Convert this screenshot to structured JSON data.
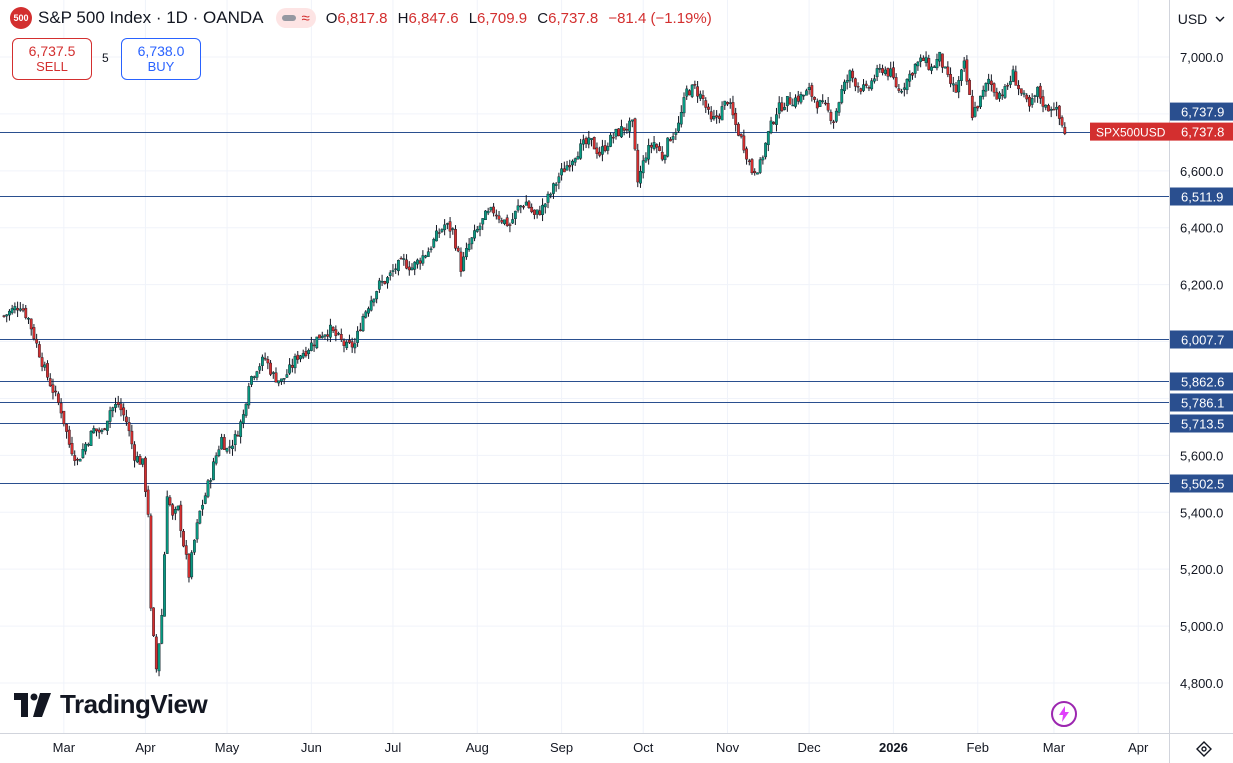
{
  "header": {
    "symbol_badge": "500",
    "title": "S&P 500 Index · 1D · OANDA",
    "ohlc": {
      "o_label": "O",
      "o": "6,817.8",
      "h_label": "H",
      "h": "6,847.6",
      "l_label": "L",
      "l": "6,709.9",
      "c_label": "C",
      "c": "6,737.8",
      "change": "−81.4 (−1.19%)"
    }
  },
  "trade": {
    "sell_price": "6,737.5",
    "sell_label": "SELL",
    "spread": "5",
    "buy_price": "6,738.0",
    "buy_label": "BUY"
  },
  "currency": "USD",
  "brand": "TradingView",
  "colors": {
    "up": "#089981",
    "down": "#d32f2f",
    "line": "#2a4f8f",
    "grid": "#f0f3fa"
  },
  "chart_data": {
    "type": "candlestick",
    "symbol": "SPX500USD",
    "ylim": [
      4720,
      7120
    ],
    "y_ticks": [
      4800,
      5000,
      5200,
      5400,
      5600,
      5800,
      6000,
      6200,
      6400,
      6600,
      6800,
      7000
    ],
    "y_tick_labels": [
      "4,800.0",
      "5,000.0",
      "5,200.0",
      "5,400.0",
      "5,600.0",
      "5,800.0",
      "6,000.0",
      "6,200.0",
      "6,400.0",
      "6,600.0",
      "6,800.0",
      "7,000.0"
    ],
    "x_labels": [
      {
        "label": "Mar",
        "day": 22
      },
      {
        "label": "Apr",
        "day": 52
      },
      {
        "label": "May",
        "day": 82
      },
      {
        "label": "Jun",
        "day": 113
      },
      {
        "label": "Jul",
        "day": 143
      },
      {
        "label": "Aug",
        "day": 174
      },
      {
        "label": "Sep",
        "day": 205
      },
      {
        "label": "Oct",
        "day": 235
      },
      {
        "label": "Nov",
        "day": 266
      },
      {
        "label": "Dec",
        "day": 296
      },
      {
        "label": "2026",
        "day": 327,
        "bold": true
      },
      {
        "label": "Feb",
        "day": 358
      },
      {
        "label": "Mar",
        "day": 386
      },
      {
        "label": "Apr",
        "day": 417
      }
    ],
    "horizontal_lines": [
      {
        "value": 6737.8,
        "label": "6,737.8"
      },
      {
        "value": 6511.9,
        "label": "6,511.9"
      },
      {
        "value": 6007.7,
        "label": "6,007.7"
      },
      {
        "value": 5862.6,
        "label": "5,862.6"
      },
      {
        "value": 5786.1,
        "label": "5,786.1"
      },
      {
        "value": 5713.5,
        "label": "5,713.5"
      },
      {
        "value": 5502.5,
        "label": "5,502.5"
      }
    ],
    "current_price": {
      "value": 6737.8,
      "label": "6,737.8",
      "symbol_label": "SPX500USD"
    },
    "other_price": {
      "value": 6737.9,
      "label": "6,737.9"
    },
    "closes": [
      {
        "day": 0,
        "close": 6090
      },
      {
        "day": 3,
        "close": 6110
      },
      {
        "day": 6,
        "close": 6130
      },
      {
        "day": 9,
        "close": 6080
      },
      {
        "day": 12,
        "close": 5990
      },
      {
        "day": 15,
        "close": 5900
      },
      {
        "day": 18,
        "close": 5830
      },
      {
        "day": 21,
        "close": 5760
      },
      {
        "day": 24,
        "close": 5640
      },
      {
        "day": 27,
        "close": 5580
      },
      {
        "day": 30,
        "close": 5640
      },
      {
        "day": 33,
        "close": 5690
      },
      {
        "day": 36,
        "close": 5680
      },
      {
        "day": 39,
        "close": 5760
      },
      {
        "day": 42,
        "close": 5780
      },
      {
        "day": 45,
        "close": 5720
      },
      {
        "day": 48,
        "close": 5600
      },
      {
        "day": 51,
        "close": 5570
      },
      {
        "day": 53,
        "close": 5400
      },
      {
        "day": 54,
        "close": 5050
      },
      {
        "day": 56,
        "close": 4850
      },
      {
        "day": 58,
        "close": 5040
      },
      {
        "day": 60,
        "close": 5470
      },
      {
        "day": 62,
        "close": 5380
      },
      {
        "day": 64,
        "close": 5410
      },
      {
        "day": 66,
        "close": 5290
      },
      {
        "day": 68,
        "close": 5180
      },
      {
        "day": 70,
        "close": 5300
      },
      {
        "day": 72,
        "close": 5400
      },
      {
        "day": 74,
        "close": 5460
      },
      {
        "day": 76,
        "close": 5530
      },
      {
        "day": 78,
        "close": 5600
      },
      {
        "day": 80,
        "close": 5660
      },
      {
        "day": 82,
        "close": 5620
      },
      {
        "day": 85,
        "close": 5660
      },
      {
        "day": 88,
        "close": 5740
      },
      {
        "day": 90,
        "close": 5860
      },
      {
        "day": 93,
        "close": 5910
      },
      {
        "day": 96,
        "close": 5940
      },
      {
        "day": 99,
        "close": 5880
      },
      {
        "day": 102,
        "close": 5860
      },
      {
        "day": 105,
        "close": 5900
      },
      {
        "day": 108,
        "close": 5950
      },
      {
        "day": 111,
        "close": 5970
      },
      {
        "day": 114,
        "close": 6000
      },
      {
        "day": 117,
        "close": 6030
      },
      {
        "day": 120,
        "close": 6040
      },
      {
        "day": 123,
        "close": 6010
      },
      {
        "day": 126,
        "close": 5980
      },
      {
        "day": 129,
        "close": 5990
      },
      {
        "day": 132,
        "close": 6090
      },
      {
        "day": 135,
        "close": 6150
      },
      {
        "day": 138,
        "close": 6200
      },
      {
        "day": 141,
        "close": 6220
      },
      {
        "day": 144,
        "close": 6260
      },
      {
        "day": 147,
        "close": 6280
      },
      {
        "day": 150,
        "close": 6260
      },
      {
        "day": 153,
        "close": 6290
      },
      {
        "day": 156,
        "close": 6320
      },
      {
        "day": 159,
        "close": 6370
      },
      {
        "day": 162,
        "close": 6410
      },
      {
        "day": 165,
        "close": 6390
      },
      {
        "day": 168,
        "close": 6260
      },
      {
        "day": 171,
        "close": 6340
      },
      {
        "day": 174,
        "close": 6390
      },
      {
        "day": 177,
        "close": 6440
      },
      {
        "day": 180,
        "close": 6460
      },
      {
        "day": 183,
        "close": 6430
      },
      {
        "day": 186,
        "close": 6410
      },
      {
        "day": 189,
        "close": 6470
      },
      {
        "day": 192,
        "close": 6490
      },
      {
        "day": 195,
        "close": 6440
      },
      {
        "day": 198,
        "close": 6470
      },
      {
        "day": 201,
        "close": 6520
      },
      {
        "day": 204,
        "close": 6580
      },
      {
        "day": 207,
        "close": 6620
      },
      {
        "day": 210,
        "close": 6660
      },
      {
        "day": 213,
        "close": 6690
      },
      {
        "day": 216,
        "close": 6700
      },
      {
        "day": 219,
        "close": 6660
      },
      {
        "day": 222,
        "close": 6700
      },
      {
        "day": 225,
        "close": 6730
      },
      {
        "day": 228,
        "close": 6750
      },
      {
        "day": 231,
        "close": 6760
      },
      {
        "day": 233,
        "close": 6560
      },
      {
        "day": 236,
        "close": 6660
      },
      {
        "day": 239,
        "close": 6700
      },
      {
        "day": 242,
        "close": 6650
      },
      {
        "day": 245,
        "close": 6720
      },
      {
        "day": 248,
        "close": 6760
      },
      {
        "day": 251,
        "close": 6880
      },
      {
        "day": 254,
        "close": 6890
      },
      {
        "day": 257,
        "close": 6850
      },
      {
        "day": 260,
        "close": 6770
      },
      {
        "day": 263,
        "close": 6800
      },
      {
        "day": 266,
        "close": 6850
      },
      {
        "day": 269,
        "close": 6760
      },
      {
        "day": 272,
        "close": 6690
      },
      {
        "day": 275,
        "close": 6600
      },
      {
        "day": 278,
        "close": 6620
      },
      {
        "day": 281,
        "close": 6730
      },
      {
        "day": 284,
        "close": 6810
      },
      {
        "day": 287,
        "close": 6840
      },
      {
        "day": 290,
        "close": 6850
      },
      {
        "day": 293,
        "close": 6860
      },
      {
        "day": 296,
        "close": 6880
      },
      {
        "day": 299,
        "close": 6840
      },
      {
        "day": 302,
        "close": 6820
      },
      {
        "day": 305,
        "close": 6780
      },
      {
        "day": 308,
        "close": 6880
      },
      {
        "day": 311,
        "close": 6940
      },
      {
        "day": 314,
        "close": 6900
      },
      {
        "day": 317,
        "close": 6880
      },
      {
        "day": 320,
        "close": 6930
      },
      {
        "day": 323,
        "close": 6960
      },
      {
        "day": 326,
        "close": 6940
      },
      {
        "day": 329,
        "close": 6880
      },
      {
        "day": 332,
        "close": 6920
      },
      {
        "day": 335,
        "close": 6970
      },
      {
        "day": 338,
        "close": 6990
      },
      {
        "day": 341,
        "close": 6960
      },
      {
        "day": 344,
        "close": 7000
      },
      {
        "day": 347,
        "close": 6920
      },
      {
        "day": 350,
        "close": 6880
      },
      {
        "day": 353,
        "close": 6970
      },
      {
        "day": 356,
        "close": 6800
      },
      {
        "day": 359,
        "close": 6850
      },
      {
        "day": 362,
        "close": 6920
      },
      {
        "day": 365,
        "close": 6870
      },
      {
        "day": 368,
        "close": 6880
      },
      {
        "day": 371,
        "close": 6940
      },
      {
        "day": 374,
        "close": 6870
      },
      {
        "day": 377,
        "close": 6820
      },
      {
        "day": 380,
        "close": 6880
      },
      {
        "day": 383,
        "close": 6820
      },
      {
        "day": 386,
        "close": 6830
      },
      {
        "day": 389,
        "close": 6760
      },
      {
        "day": 390,
        "close": 6738
      }
    ]
  }
}
